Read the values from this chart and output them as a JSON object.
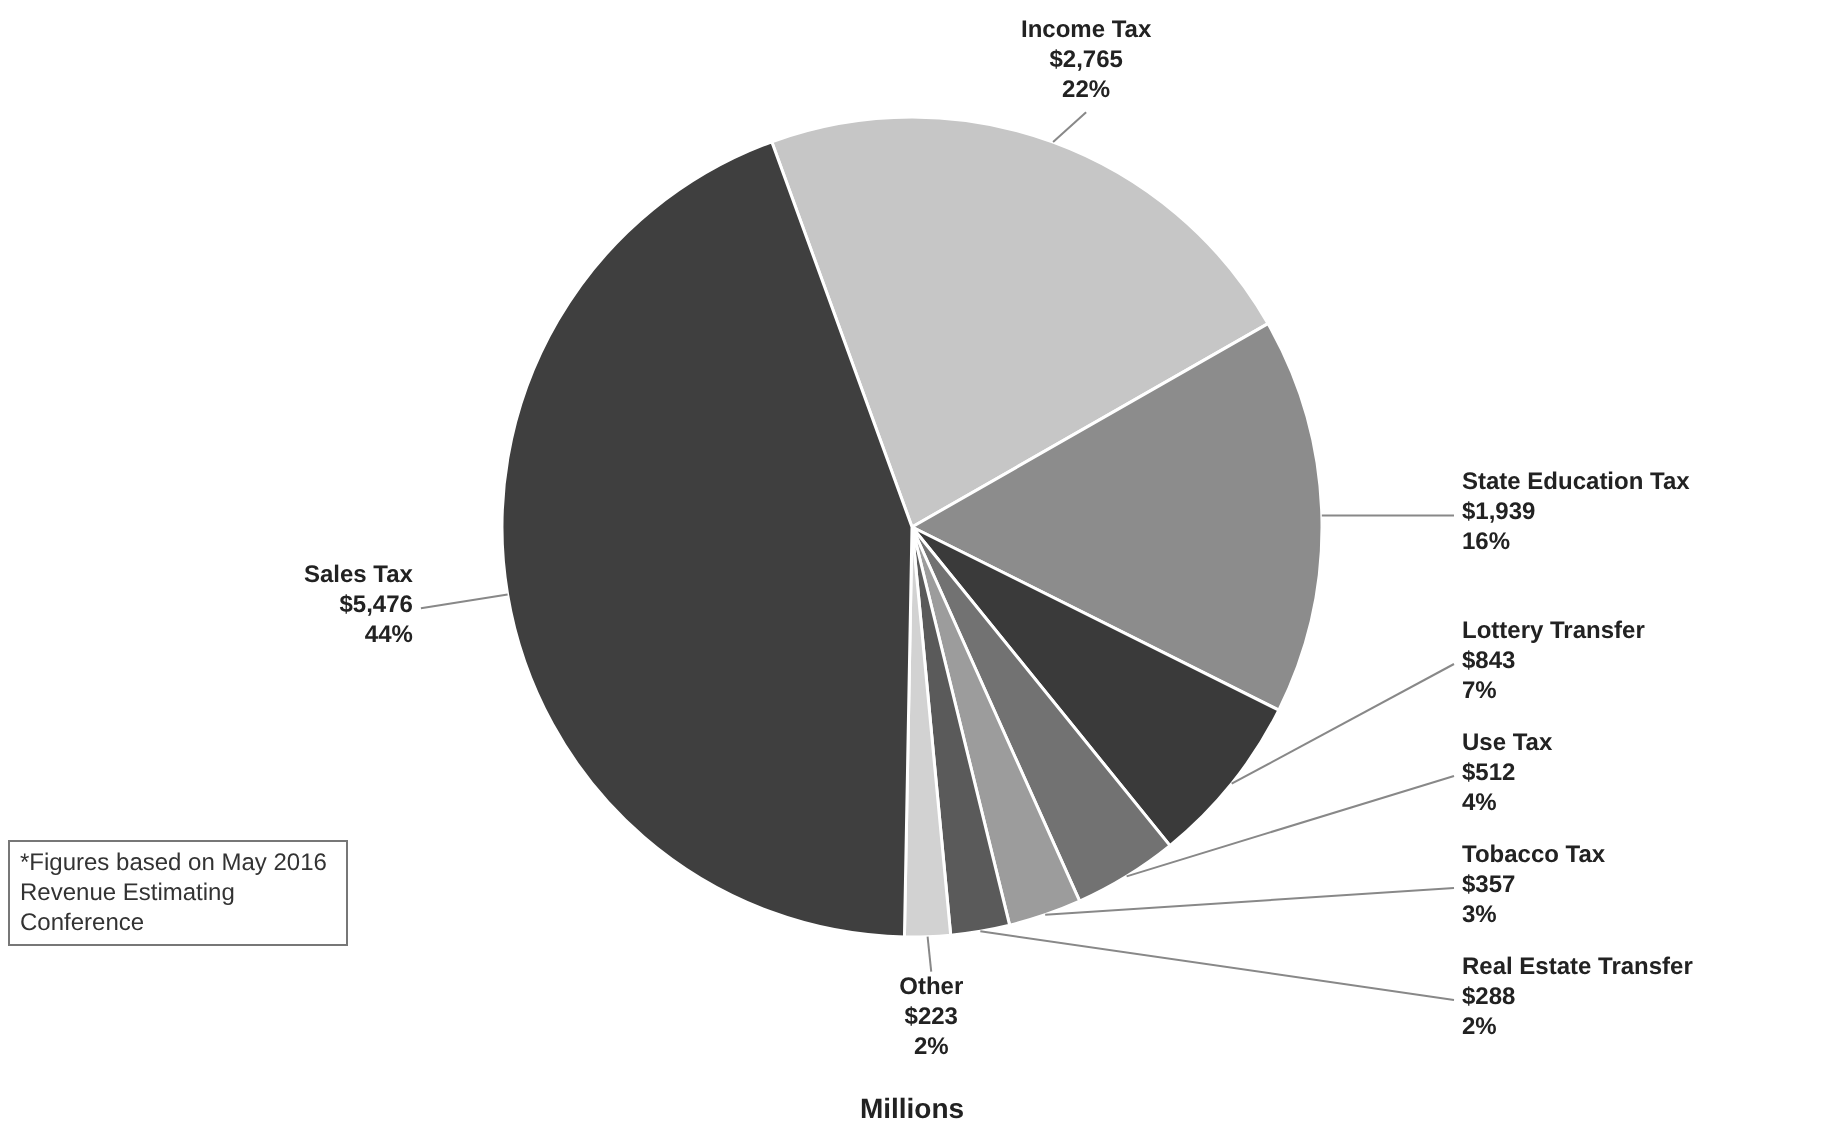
{
  "chart_data": {
    "type": "pie",
    "xlabel": "Millions",
    "categories": [
      "Income Tax",
      "State Education Tax",
      "Lottery Transfer",
      "Use Tax",
      "Tobacco Tax",
      "Real Estate Transfer",
      "Other",
      "Sales Tax"
    ],
    "values": [
      2765,
      1939,
      843,
      512,
      357,
      288,
      223,
      5476
    ],
    "value_labels": [
      "$2,765\n22%",
      "$1,939\n16%",
      "$843\n7%",
      "$512\n4%",
      "$357\n3%",
      "$288\n2%",
      "$223\n2%",
      "$5,476\n44%"
    ],
    "colors": [
      "#c6c6c6",
      "#8c8c8c",
      "#3a3a3a",
      "#727272",
      "#9c9c9c",
      "#5a5a5a",
      "#d2d2d2",
      "#3f3f3f"
    ],
    "legend": false,
    "annotations": [
      "*Figures based on May 2016 Revenue Estimating Conference"
    ]
  }
}
